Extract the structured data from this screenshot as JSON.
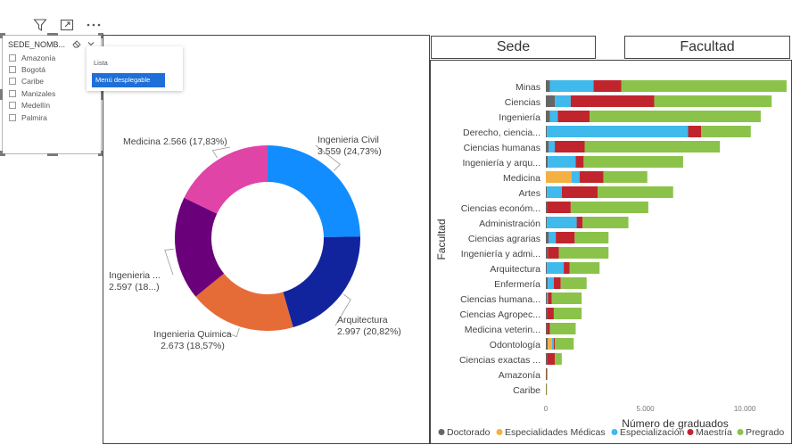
{
  "toolbar": {
    "icons": [
      "filter-icon",
      "focus-mode-icon",
      "more-options-icon"
    ]
  },
  "slicer": {
    "title": "SEDE_NOMB...",
    "items": [
      "Amazonía",
      "Bogotá",
      "Caribe",
      "Manizales",
      "Medellín",
      "Palmira"
    ]
  },
  "dropdown": {
    "option_list": "Lista",
    "option_dropdown": "Menú desplegable",
    "selected": "Menú desplegable"
  },
  "buttons": {
    "sede": "Sede",
    "facultad": "Facultad"
  },
  "chart_data": [
    {
      "type": "pie",
      "donut": true,
      "slices": [
        {
          "label": "Ingenieria Civil",
          "value": 3559,
          "pct": 24.73,
          "color": "#118dff",
          "text1": "Ingenieria Civil",
          "text2": "3.559 (24,73%)"
        },
        {
          "label": "Arquitectura",
          "value": 2997,
          "pct": 20.82,
          "color": "#12239e",
          "text1": "Arquitectura",
          "text2": "2.997 (20,82%)"
        },
        {
          "label": "Ingenieria Quimica",
          "value": 2673,
          "pct": 18.57,
          "color": "#e66c37",
          "text1": "Ingenieria Quimica",
          "text2": "2.673 (18,57%)"
        },
        {
          "label": "Ingenieria ...",
          "value": 2597,
          "pct": 18.05,
          "color": "#6b007b",
          "text1": "Ingenieria ...",
          "text2": "2.597 (18...)"
        },
        {
          "label": "Medicina",
          "value": 2566,
          "pct": 17.83,
          "color": "#e044a7",
          "text1": "Medicina 2.566 (17,83%)",
          "text2": ""
        }
      ]
    },
    {
      "type": "bar",
      "orientation": "horizontal",
      "stacked": true,
      "xlabel": "Número de graduados",
      "ylabel": "Facultad",
      "xlim": [
        0,
        13000
      ],
      "xticks": [
        0,
        5000,
        10000
      ],
      "xtick_labels": [
        "0",
        "5.000",
        "10.000"
      ],
      "legend_position": "bottom",
      "categories": [
        "Minas",
        "Ciencias",
        "Ingeniería",
        "Derecho, ciencia...",
        "Ciencias humanas",
        "Ingeniería y arqu...",
        "Medicina",
        "Artes",
        "Ciencias económ...",
        "Administración",
        "Ciencias agrarias",
        "Ingeniería y admi...",
        "Arquitectura",
        "Enfermería",
        "Ciencias humana...",
        "Ciencias Agropec...",
        "Medicina veterin...",
        "Odontología",
        "Ciencias exactas ...",
        "Amazonía",
        "Caribe"
      ],
      "series": [
        {
          "name": "Doctorado",
          "color": "#666666",
          "values": [
            200,
            450,
            200,
            50,
            150,
            100,
            0,
            50,
            50,
            50,
            150,
            100,
            50,
            100,
            50,
            50,
            50,
            100,
            50,
            20,
            10
          ]
        },
        {
          "name": "Especialidades Médicas",
          "color": "#f5b042",
          "values": [
            0,
            0,
            0,
            0,
            0,
            0,
            1300,
            0,
            0,
            0,
            0,
            0,
            0,
            0,
            0,
            0,
            0,
            200,
            0,
            0,
            0
          ]
        },
        {
          "name": "Especialización",
          "color": "#40b9ec",
          "values": [
            2200,
            800,
            400,
            7100,
            300,
            1400,
            400,
            750,
            0,
            1500,
            350,
            0,
            850,
            300,
            50,
            0,
            0,
            100,
            0,
            0,
            0
          ]
        },
        {
          "name": "Maestría",
          "color": "#c0252d",
          "values": [
            1400,
            4200,
            1600,
            650,
            1500,
            400,
            1200,
            1800,
            1200,
            300,
            950,
            550,
            300,
            350,
            200,
            350,
            150,
            50,
            400,
            20,
            10
          ]
        },
        {
          "name": "Pregrado",
          "color": "#8bc34a",
          "values": [
            8300,
            5900,
            8600,
            2500,
            6800,
            5000,
            2200,
            3800,
            3900,
            2300,
            1700,
            2500,
            1500,
            1300,
            1500,
            1400,
            1300,
            950,
            350,
            50,
            20
          ]
        }
      ]
    }
  ]
}
